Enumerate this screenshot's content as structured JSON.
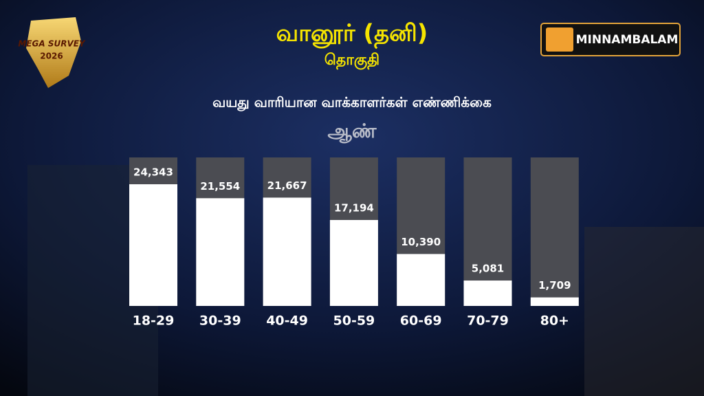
{
  "header": {
    "badge": "MEGA SURVEY",
    "badge_year": "2026",
    "logo": "MINNAMBALAM"
  },
  "chart_data": {
    "type": "bar",
    "title": "வானூர் (தனி)",
    "subtitle": "தொகுதி",
    "caption": "வயது வாரியான வாக்காளர்கள் எண்ணிக்கை",
    "series_label": "ஆண்",
    "categories": [
      "18-29",
      "30-39",
      "40-49",
      "50-59",
      "60-69",
      "70-79",
      "80+"
    ],
    "values": [
      24343,
      21554,
      21667,
      17194,
      10390,
      5081,
      1709
    ],
    "value_labels": [
      "24,343",
      "21,554",
      "21,667",
      "17,194",
      "10,390",
      "5,081",
      "1,709"
    ],
    "color": "#ffffff"
  }
}
